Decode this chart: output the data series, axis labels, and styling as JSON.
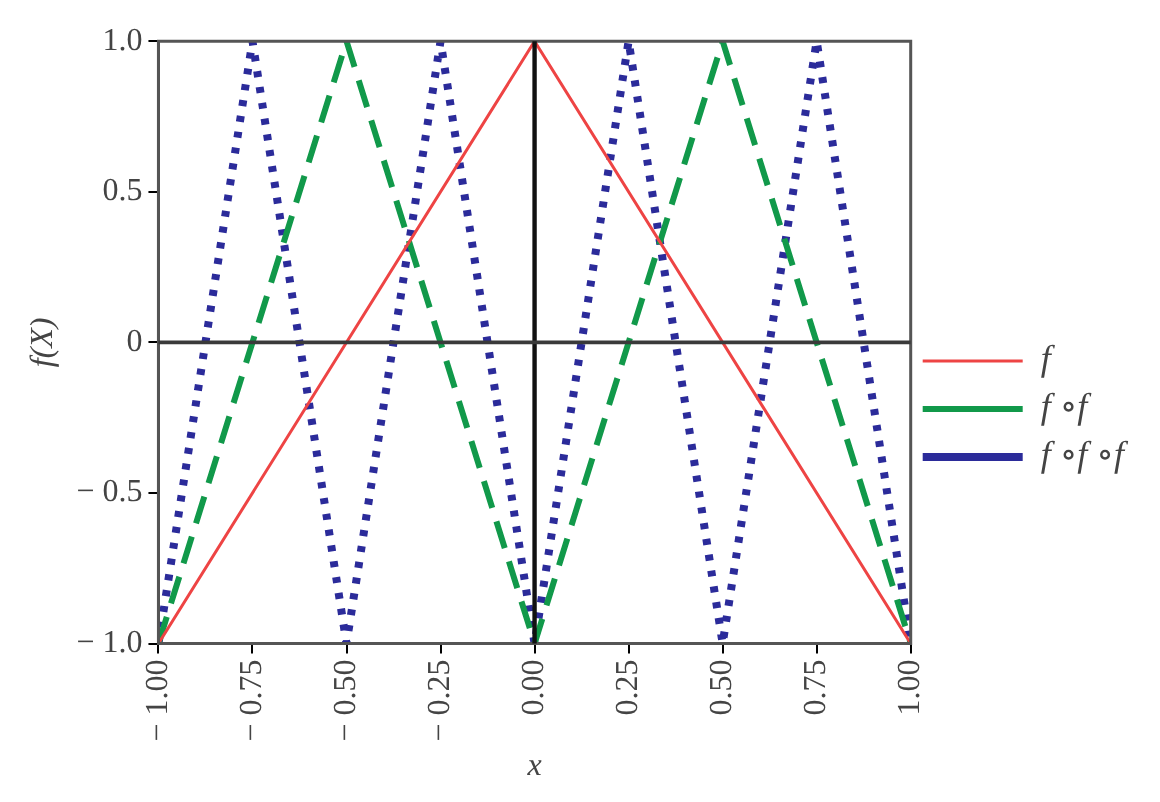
{
  "chart_data": {
    "type": "line",
    "xlabel": "x",
    "ylabel": "f(X)",
    "xlim": [
      -1,
      1
    ],
    "xticks": [
      {
        "value": -1,
        "label": "− 1.00"
      },
      {
        "value": -0.75,
        "label": "− 0.75"
      },
      {
        "value": -0.5,
        "label": "− 0.50"
      },
      {
        "value": -0.25,
        "label": "− 0.25"
      },
      {
        "value": 0,
        "label": "0.00"
      },
      0.25,
      {
        "value": 0.5,
        "label": "0.50"
      },
      0.75,
      {
        "value": 1,
        "label": "1.00"
      }
    ],
    "ylim": [
      -1,
      1
    ],
    "yticks": [
      {
        "value": -1,
        "label": "− 1.0"
      },
      {
        "value": -0.5,
        "label": "− 0.5"
      },
      0,
      0.5,
      {
        "value": 1,
        "label": "1.0"
      }
    ],
    "series": [
      {
        "name": "f",
        "color": "#ee4444",
        "line_style": "solid",
        "x": [
          -1,
          0,
          1
        ],
        "values": [
          -1,
          1,
          -1
        ]
      },
      {
        "name": "f ∘f",
        "color": "#11994a",
        "line_style": "dashed",
        "x": [
          -1,
          -0.5,
          0,
          0.5,
          1
        ],
        "values": [
          -1,
          1,
          -1,
          1,
          -1
        ]
      },
      {
        "name": "f ∘f ∘f",
        "color": "#2b2b9a",
        "line_style": "dotted",
        "x": [
          -1,
          -0.75,
          -0.5,
          -0.25,
          0,
          0.25,
          0.5,
          0.75,
          1
        ],
        "values": [
          -1,
          1,
          -1,
          1,
          -1,
          1,
          -1,
          1,
          -1
        ]
      }
    ],
    "ref_lines": [
      {
        "axis": "x",
        "value": 0,
        "color": "#111111"
      },
      {
        "axis": "y",
        "value": 0,
        "color": "#3a3a3a"
      }
    ],
    "grid": false,
    "legend": "right",
    "marker": "none"
  }
}
